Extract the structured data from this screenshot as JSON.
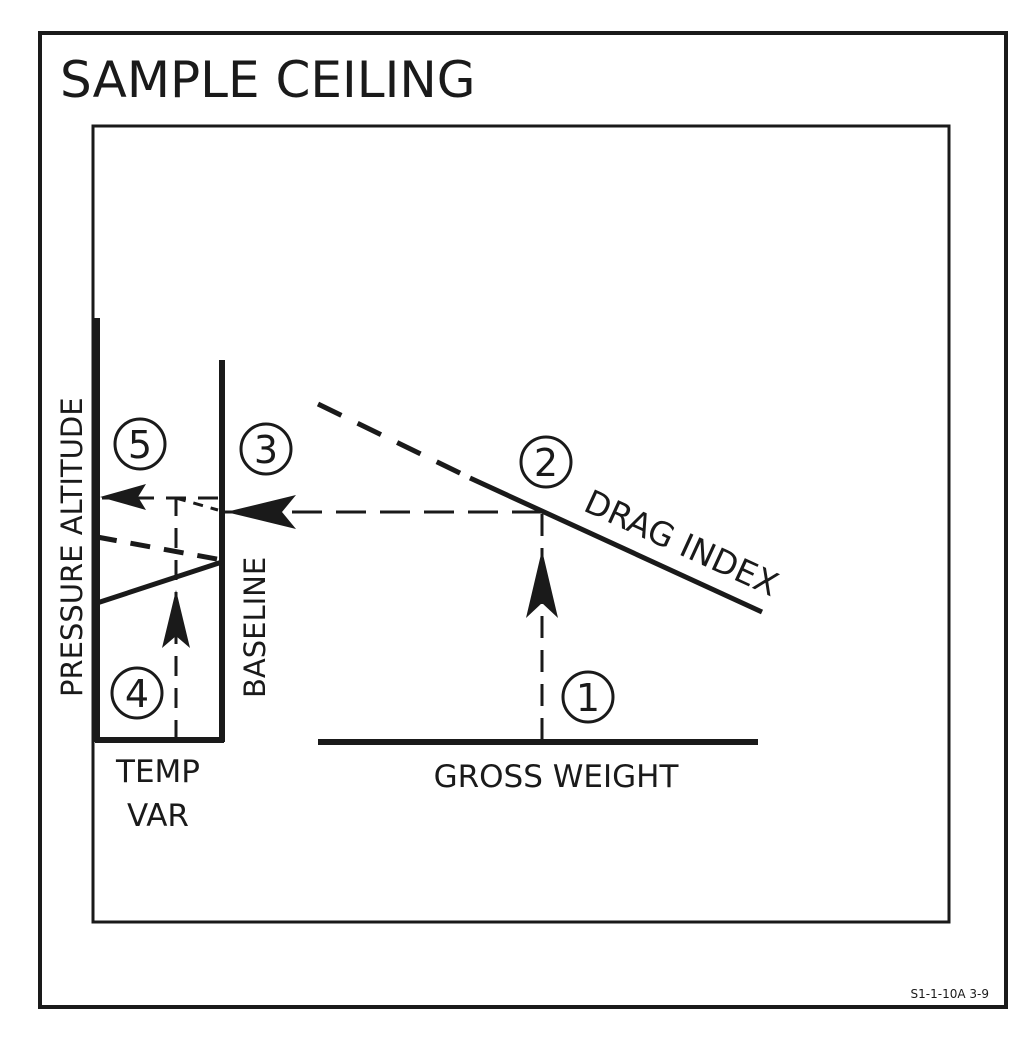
{
  "title": "SAMPLE CEILING",
  "labels": {
    "pressure_altitude": "PRESSURE ALTITUDE",
    "baseline": "BASELINE",
    "drag_index": "DRAG INDEX",
    "gross_weight": "GROSS WEIGHT",
    "temp_var_line1": "TEMP",
    "temp_var_line2": "VAR"
  },
  "steps": [
    "1",
    "2",
    "3",
    "4",
    "5"
  ],
  "figure_id": "S1-1-10A 3-9",
  "colors": {
    "ink": "#1a1a1a",
    "paper": "#ffffff"
  }
}
